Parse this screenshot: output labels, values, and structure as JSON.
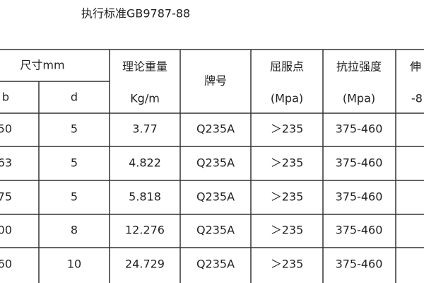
{
  "title": "执行标准GB9787-88",
  "table": {
    "header": {
      "size": "尺寸mm",
      "b": "b",
      "d": "d",
      "weight": "理论重量",
      "weight_unit": "Kg/m",
      "grade": "牌号",
      "yield": "屈服点",
      "yield_unit": "(Mpa)",
      "tensile": "抗拉强度",
      "tensile_unit": "(Mpa)",
      "elong": "伸",
      "elong_unit": "-8"
    },
    "rows": [
      [
        "50",
        "5",
        "3.77",
        "Q235A",
        "＞235",
        "375-460"
      ],
      [
        "63",
        "5",
        "4.822",
        "Q235A",
        "＞235",
        "375-460"
      ],
      [
        "75",
        "5",
        "5.818",
        "Q235A",
        "＞235",
        "375-460"
      ],
      [
        "00",
        "8",
        "12.276",
        "Q235A",
        "＞235",
        "375-460"
      ],
      [
        "60",
        "10",
        "24.729",
        "Q235A",
        "＞235",
        "375-460"
      ]
    ]
  }
}
